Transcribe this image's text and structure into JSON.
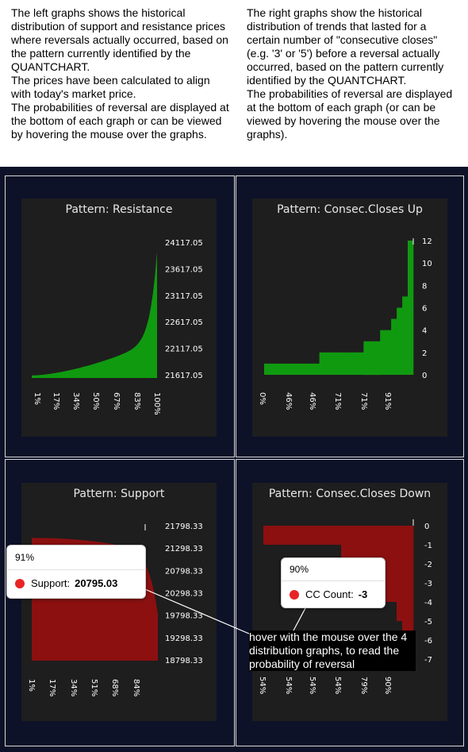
{
  "intro": {
    "left": [
      "The left graphs shows the historical distribution of support and resistance prices where reversals actually occurred, based on the pattern currently identified by the QUANTCHART.",
      "The prices have been calculated to align with today's market price.",
      "The probabilities of reversal are displayed at the bottom of each graph or can be viewed by hovering the mouse over the graphs."
    ],
    "right": [
      "The right graphs show the historical distribution of trends that lasted for a certain number of \"consecutive closes\" (e.g. '3' or '5') before a reversal actually occurred, based on the pattern currently identified by the QUANTCHART.",
      "The probabilities of reversal are displayed at the bottom of each graph (or can be viewed by hovering the mouse over the graphs)."
    ]
  },
  "colors": {
    "green": "#109a10",
    "red": "#8c1010",
    "panel": "#1e1e1e",
    "dashboard": "#0d1228",
    "dot": "#e82525"
  },
  "charts": {
    "resistance": {
      "title": "Pattern: Resistance",
      "y_ticks": [
        "24117.05",
        "23617.05",
        "23117.05",
        "22617.05",
        "22117.05",
        "21617.05"
      ],
      "x_ticks": [
        "1%",
        "17%",
        "34%",
        "50%",
        "67%",
        "83%",
        "100%"
      ]
    },
    "closes_up": {
      "title": "Pattern: Consec.Closes Up",
      "y_ticks": [
        "12",
        "10",
        "8",
        "6",
        "4",
        "2",
        "0"
      ],
      "x_ticks": [
        "0%",
        "46%",
        "46%",
        "71%",
        "71%",
        "91%"
      ]
    },
    "support": {
      "title": "Pattern: Support",
      "y_ticks": [
        "21798.33",
        "21298.33",
        "20798.33",
        "20298.33",
        "19798.33",
        "19298.33",
        "18798.33"
      ],
      "x_ticks": [
        "1%",
        "17%",
        "34%",
        "51%",
        "68%",
        "84%"
      ]
    },
    "closes_down": {
      "title": "Pattern: Consec.Closes Down",
      "y_ticks": [
        "0",
        "-1",
        "-2",
        "-3",
        "-4",
        "-5",
        "-6",
        "-7"
      ],
      "x_ticks": [
        "54%",
        "54%",
        "54%",
        "54%",
        "79%",
        "90%"
      ]
    }
  },
  "chart_data": [
    {
      "type": "bar",
      "title": "Pattern: Resistance",
      "ylim": [
        21617.05,
        24117.05
      ],
      "x_ticks": [
        "1%",
        "17%",
        "34%",
        "50%",
        "67%",
        "83%",
        "100%"
      ],
      "values": [
        21617.05,
        24050
      ]
    },
    {
      "type": "bar",
      "title": "Pattern: Consec.Closes Up",
      "ylim": [
        0,
        12
      ],
      "x_ticks": [
        "0%",
        "46%",
        "46%",
        "71%",
        "71%",
        "91%"
      ],
      "values": [
        1,
        1,
        1,
        1,
        1,
        1,
        1,
        1,
        1,
        1,
        2,
        2,
        2,
        2,
        2,
        2,
        2,
        2,
        3,
        3,
        3,
        4,
        4,
        5,
        6,
        7,
        12
      ]
    },
    {
      "type": "bar",
      "title": "Pattern: Support",
      "ylim": [
        18798.33,
        21798.33
      ],
      "x_ticks": [
        "1%",
        "17%",
        "34%",
        "51%",
        "68%",
        "84%"
      ],
      "values": [
        21450,
        18800
      ]
    },
    {
      "type": "bar",
      "title": "Pattern: Consec.Closes Down",
      "ylim": [
        -7,
        0
      ],
      "x_ticks": [
        "54%",
        "54%",
        "54%",
        "54%",
        "79%",
        "90%"
      ],
      "values": [
        -1,
        -1,
        -1,
        -1,
        -1,
        -1,
        -1,
        -1,
        -1,
        -1,
        -1,
        -1,
        -1,
        -1,
        -2,
        -2,
        -2,
        -2,
        -2,
        -3,
        -3,
        -3,
        -4,
        -4,
        -5,
        -6,
        -7
      ]
    }
  ],
  "tooltips": {
    "support": {
      "header": "91%",
      "label": "Support:",
      "value": "20795.03"
    },
    "closes_down": {
      "header": "90%",
      "label": "CC Count:",
      "value": "-3"
    }
  },
  "hover_note": "hover with the mouse over the 4 distribution graphs, to read the probability of reversal"
}
